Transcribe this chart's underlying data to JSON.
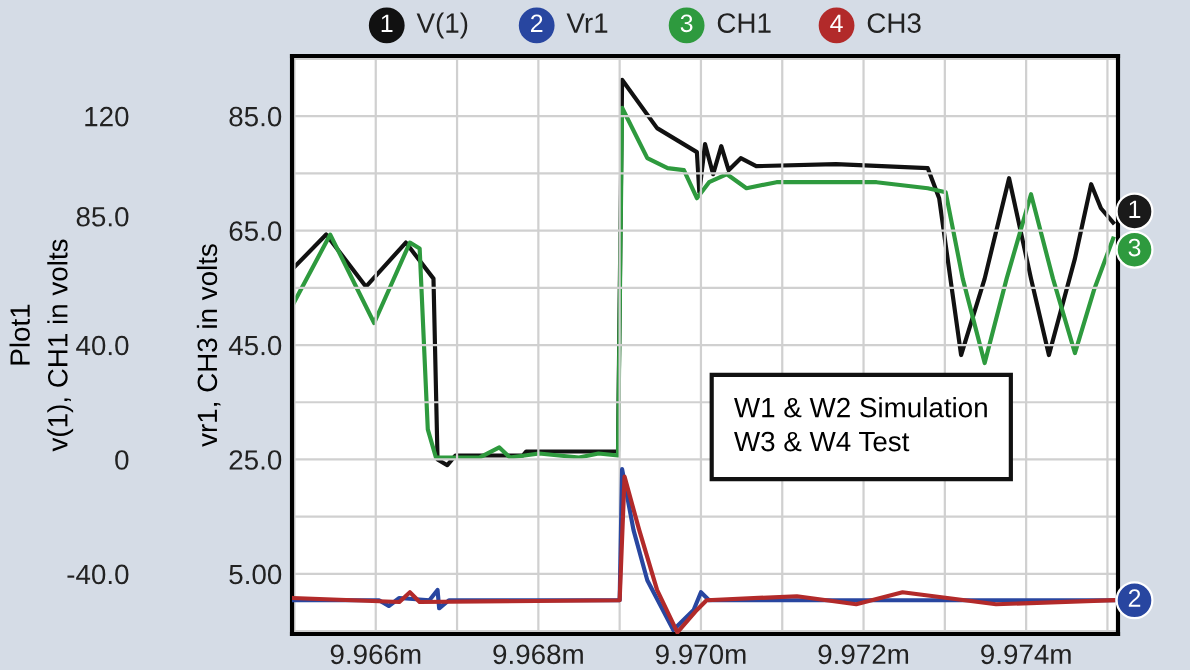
{
  "chart_data": {
    "type": "line",
    "ylabel": "vr1, CH3 in volts",
    "y2label": "v(1), CH1 in volts",
    "annotations": [
      "Plot1",
      "W1 & W2 Simulation\nW3 & W4 Test",
      "1",
      "2",
      "3",
      "4",
      "1",
      "2",
      "3"
    ],
    "xlim": [
      9.96497,
      9.97513
    ],
    "xticks": [
      {
        "value": 9.965,
        "label": null
      },
      {
        "value": 9.966,
        "label": "9.966m"
      },
      {
        "value": 9.967,
        "label": null
      },
      {
        "value": 9.968,
        "label": "9.968m"
      },
      {
        "value": 9.969,
        "label": null
      },
      {
        "value": 9.97,
        "label": "9.970m"
      },
      {
        "value": 9.971,
        "label": null
      },
      {
        "value": 9.972,
        "label": "9.972m"
      },
      {
        "value": 9.973,
        "label": null
      },
      {
        "value": 9.974,
        "label": "9.974m"
      },
      {
        "value": 9.975,
        "label": null
      }
    ],
    "ylim": [
      -5.5,
      95.5
    ],
    "yticks": [
      {
        "value": -5,
        "label": null
      },
      {
        "value": 5,
        "label": "5.00"
      },
      {
        "value": 15,
        "label": null
      },
      {
        "value": 25,
        "label": "25.0"
      },
      {
        "value": 35,
        "label": null
      },
      {
        "value": 45,
        "label": "45.0"
      },
      {
        "value": 55,
        "label": null
      },
      {
        "value": 65,
        "label": "65.0"
      },
      {
        "value": 75,
        "label": null
      },
      {
        "value": 85,
        "label": "85.0"
      },
      {
        "value": 95,
        "label": null
      }
    ],
    "y2lim": [
      -61,
      141
    ],
    "y2ticks": [
      {
        "value": -40,
        "label": "-40.0"
      },
      0,
      {
        "value": 40,
        "label": "40.0"
      },
      {
        "value": 85,
        "label": "85.0"
      },
      120
    ],
    "grid": true,
    "legend": "top",
    "line_style": "solid",
    "series": [
      {
        "name": "V(1)",
        "color": "#111111",
        "axis": "y2",
        "x": [
          9.96498,
          9.96539,
          9.96588,
          9.96637,
          9.96671,
          9.96676,
          9.96688,
          9.96698,
          9.96781,
          9.96785,
          9.96898,
          9.96903,
          9.96946,
          9.96995,
          9.96998,
          9.97005,
          9.97015,
          9.97025,
          9.97034,
          9.97049,
          9.97068,
          9.97166,
          9.97279,
          9.97293,
          9.9732,
          9.97349,
          9.97379,
          9.97406,
          9.97428,
          9.9746,
          9.9748,
          9.97492,
          9.97507
        ],
        "values": [
          66.7,
          78.6,
          60.4,
          75.8,
          63.2,
          0,
          -2,
          1.4,
          1.4,
          2.8,
          2.8,
          132.7,
          115.8,
          107.4,
          93.4,
          110.2,
          99.7,
          109.5,
          101.1,
          105.3,
          102.5,
          103.2,
          101.8,
          91.3,
          36.5,
          63.2,
          98.3,
          63.2,
          36.5,
          70.2,
          96.2,
          87.8,
          82.8
        ]
      },
      {
        "name": "Vr1",
        "color": "#2846a0",
        "x": [
          9.96498,
          9.96604,
          9.96616,
          9.96629,
          9.96666,
          9.96676,
          9.96678,
          9.9669,
          9.969,
          9.96903,
          9.96917,
          9.96934,
          9.96966,
          9.96991,
          9.97,
          9.9701,
          9.97507
        ],
        "values": [
          0.4,
          0.4,
          -0.6,
          0.8,
          0.4,
          2.2,
          -1.0,
          0.4,
          0.4,
          23.3,
          12.7,
          3.9,
          -4.8,
          -1.3,
          1.8,
          0.4,
          0.4
        ]
      },
      {
        "name": "CH1",
        "color": "#2e9a3e",
        "axis": "y2",
        "x": [
          9.96498,
          9.96544,
          9.96598,
          9.96642,
          9.96654,
          9.96664,
          9.96674,
          9.96728,
          9.96752,
          9.96765,
          9.96801,
          9.9685,
          9.96874,
          9.96898,
          9.96903,
          9.96934,
          9.96959,
          9.96979,
          9.96995,
          9.9701,
          9.97032,
          9.97056,
          9.97093,
          9.97216,
          9.97279,
          9.97301,
          9.97322,
          9.97349,
          9.97376,
          9.97406,
          9.97433,
          9.9746,
          9.97484,
          9.97507
        ],
        "values": [
          54.1,
          78.6,
          47.7,
          75.8,
          73.7,
          10.5,
          0.7,
          0.7,
          4.2,
          0.7,
          2.1,
          0.7,
          2.1,
          1.4,
          122.9,
          105.3,
          101.8,
          101.1,
          91.3,
          96.9,
          99.7,
          94.8,
          96.9,
          96.9,
          94.8,
          93.4,
          63.2,
          33.7,
          63.2,
          92.7,
          63.2,
          37.2,
          59.7,
          77.2
        ]
      },
      {
        "name": "CH3",
        "color": "#b22a2a",
        "x": [
          9.96498,
          9.96629,
          9.96642,
          9.96654,
          9.969,
          9.96906,
          9.96924,
          9.96946,
          9.96971,
          9.96995,
          9.97007,
          9.97118,
          9.97191,
          9.97248,
          9.97363,
          9.97507
        ],
        "values": [
          0.8,
          0.1,
          1.8,
          0.1,
          0.4,
          22,
          12.7,
          2.2,
          -5.2,
          -1.3,
          0.4,
          1.1,
          -0.3,
          1.8,
          -0.3,
          0.4
        ]
      }
    ]
  }
}
